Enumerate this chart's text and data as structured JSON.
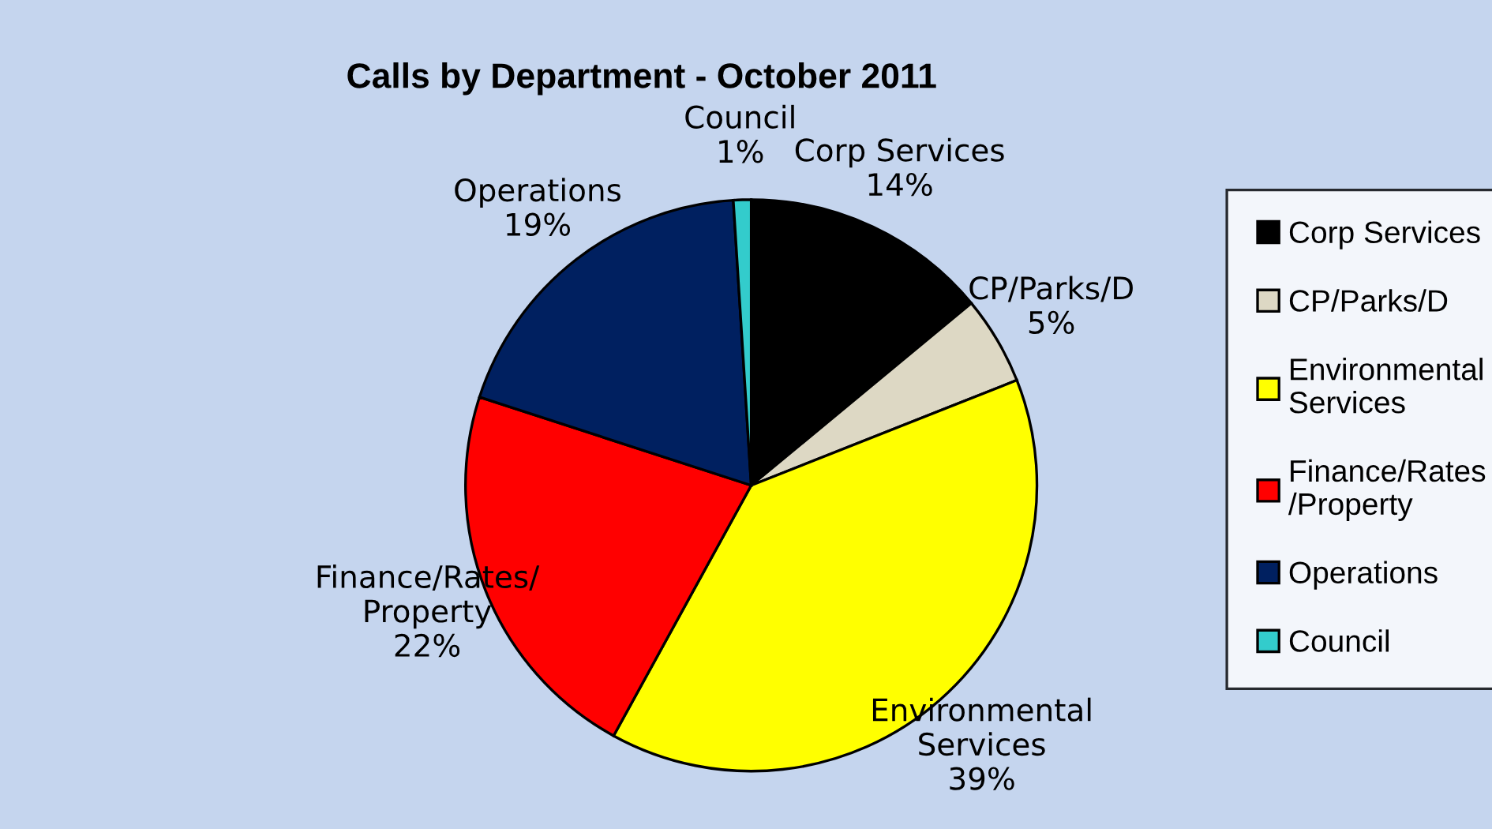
{
  "chart_data": {
    "type": "pie",
    "title": "Calls by Department - October 2011",
    "categories": [
      "Corp Services",
      "CP/Parks/D",
      "Environmental\nServices",
      "Finance/Rates\n/Property",
      "Operations",
      "Council"
    ],
    "values": [
      14,
      5,
      39,
      22,
      19,
      1
    ],
    "value_labels": [
      "Corp Services\n14%",
      "CP/Parks/D\n5%",
      "Environmental\nServices\n39%",
      "Finance/Rates/\nProperty\n22%",
      "Operations\n19%",
      "Council\n1%"
    ],
    "colors": [
      "#000000",
      "#ddd8c4",
      "#ffff00",
      "#ff0000",
      "#002060",
      "#33cccc"
    ],
    "legend": "right"
  }
}
